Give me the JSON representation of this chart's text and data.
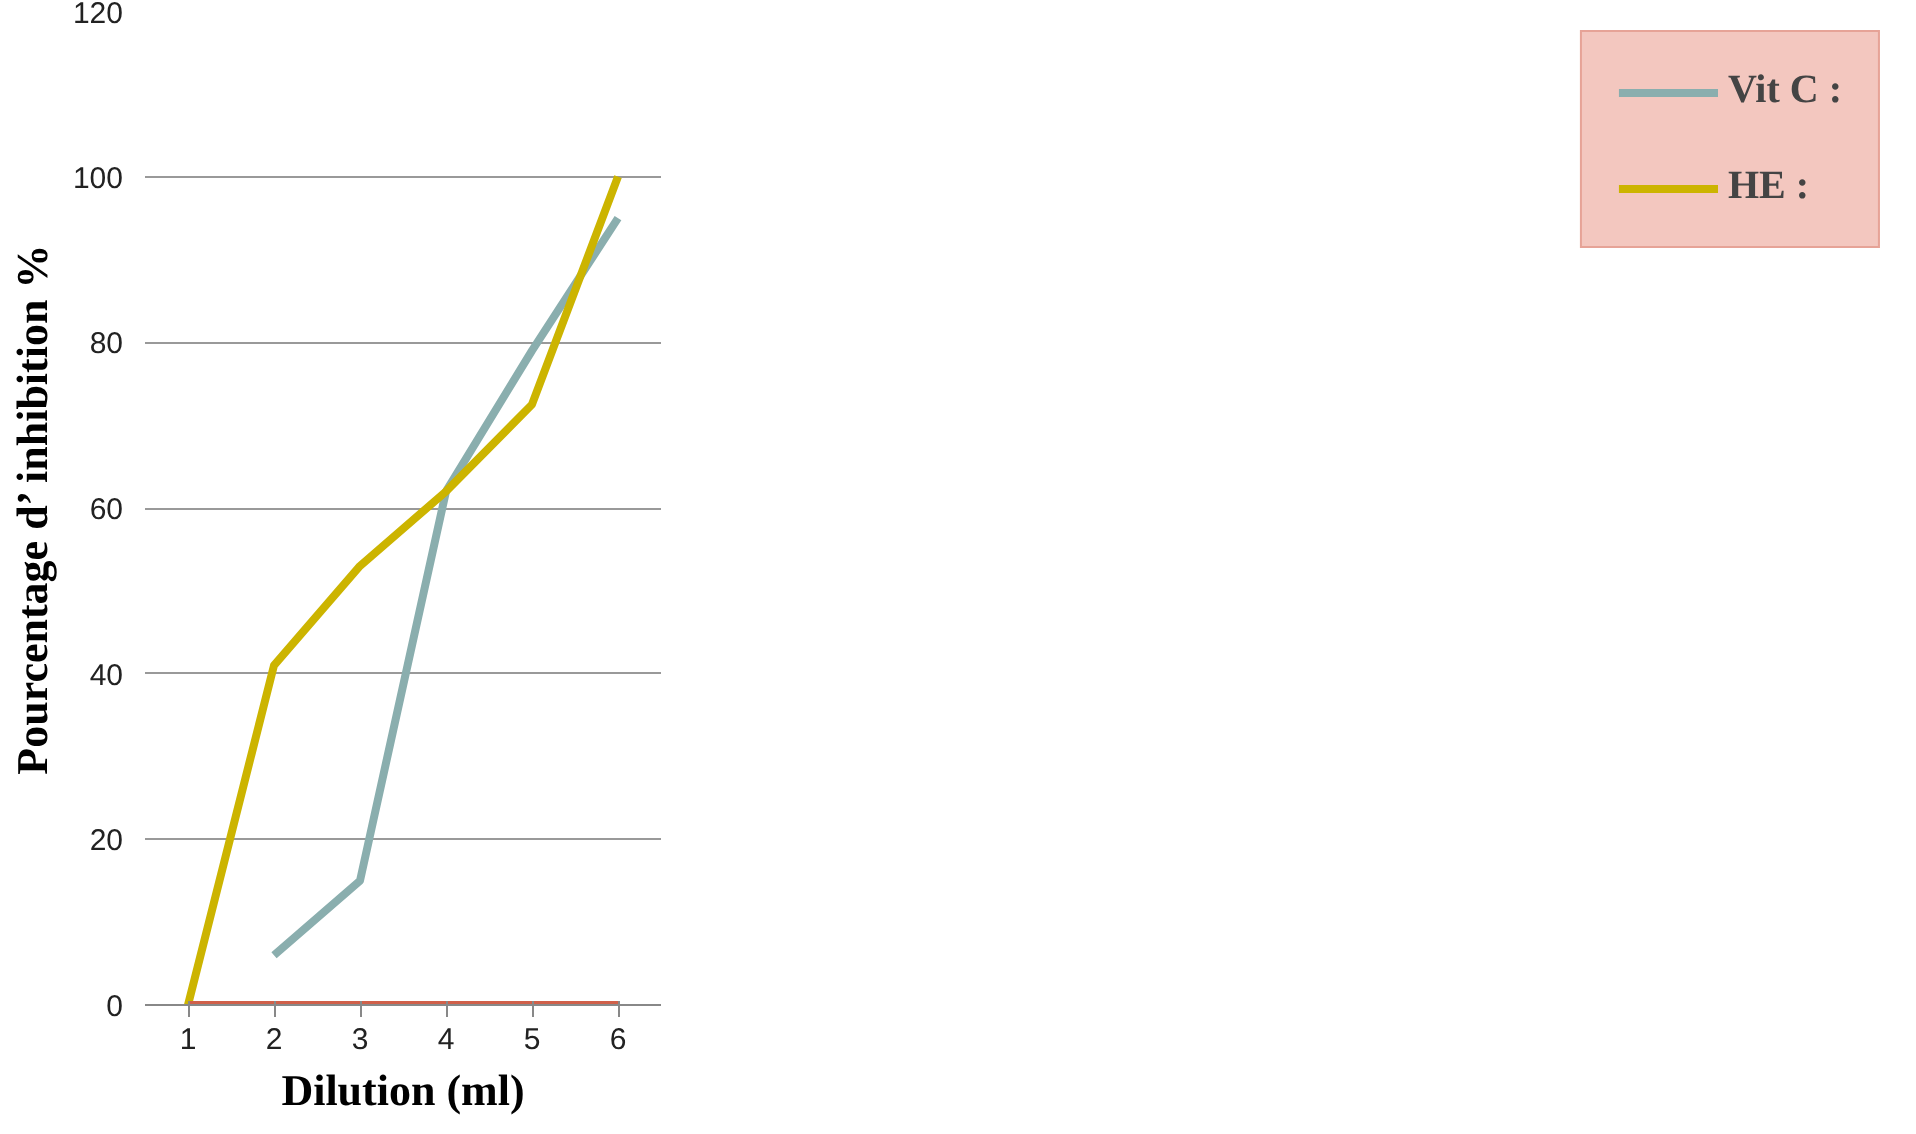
{
  "chart_data": {
    "type": "line",
    "xlabel": "Dilution (ml)",
    "ylabel": "Pourcentage d’ inhibition %",
    "categories": [
      "1",
      "2",
      "3",
      "4",
      "5",
      "6"
    ],
    "series": [
      {
        "name": "Vit C :",
        "color": "#8aaeae",
        "values": [
          null,
          6,
          15,
          62,
          79,
          95
        ]
      },
      {
        "name": "HE :",
        "color": "#ccb400",
        "values": [
          0,
          41,
          53,
          62,
          72.5,
          100
        ]
      },
      {
        "color": "#d0604a",
        "values": [
          0,
          0,
          0,
          0,
          0,
          0
        ]
      }
    ],
    "ylim": [
      0,
      120
    ],
    "yticks": [
      0,
      20,
      40,
      60,
      80,
      100,
      120
    ],
    "grid": "y",
    "legend": "right",
    "marker": "none",
    "line_style": "solid"
  }
}
